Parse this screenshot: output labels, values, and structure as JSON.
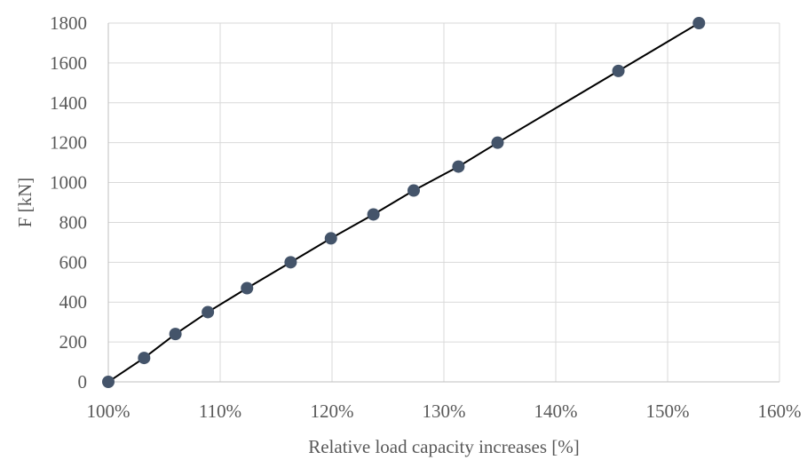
{
  "chart_data": {
    "type": "scatter",
    "xlabel": "Relative load capacity increases [%]",
    "ylabel": "F  [kN]",
    "xlim": [
      100,
      160
    ],
    "ylim": [
      0,
      1800
    ],
    "x_ticks": [
      100,
      110,
      120,
      130,
      140,
      150,
      160
    ],
    "y_ticks": [
      0,
      200,
      400,
      600,
      800,
      1000,
      1200,
      1400,
      1600,
      1800
    ],
    "x_tick_labels": [
      "100%",
      "110%",
      "120%",
      "130%",
      "140%",
      "150%",
      "160%"
    ],
    "y_tick_labels": [
      "0",
      "200",
      "400",
      "600",
      "800",
      "1000",
      "1200",
      "1400",
      "1600",
      "1800"
    ],
    "grid": true,
    "line_color": "#000000",
    "marker_color": "#44546A",
    "series": [
      {
        "values": [
          {
            "x": 100.0,
            "y": 0
          },
          {
            "x": 103.2,
            "y": 120
          },
          {
            "x": 106.0,
            "y": 240
          },
          {
            "x": 108.9,
            "y": 350
          },
          {
            "x": 112.4,
            "y": 470
          },
          {
            "x": 116.3,
            "y": 600
          },
          {
            "x": 119.9,
            "y": 720
          },
          {
            "x": 123.7,
            "y": 840
          },
          {
            "x": 127.3,
            "y": 960
          },
          {
            "x": 131.3,
            "y": 1080
          },
          {
            "x": 134.8,
            "y": 1200
          },
          {
            "x": 145.6,
            "y": 1560
          },
          {
            "x": 152.8,
            "y": 1800
          }
        ]
      }
    ]
  }
}
